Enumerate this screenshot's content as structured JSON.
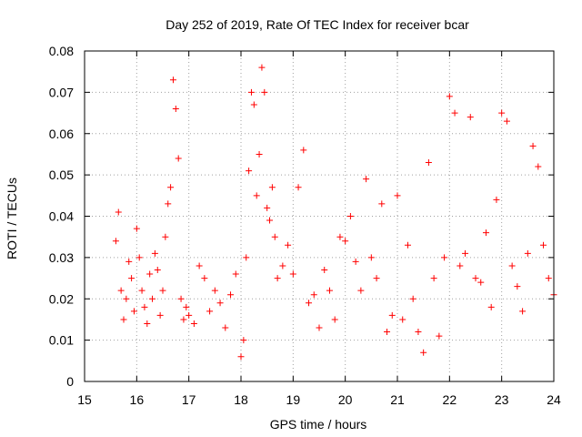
{
  "chart_data": {
    "type": "scatter",
    "title": "Day 252 of 2019, Rate Of TEC Index for receiver bcar",
    "xlabel": "GPS time / hours",
    "ylabel": "ROTI / TECUs",
    "xlim": [
      15,
      24
    ],
    "ylim": [
      0,
      0.08
    ],
    "x_ticks": [
      "15",
      "16",
      "17",
      "18",
      "19",
      "20",
      "21",
      "22",
      "23",
      "24"
    ],
    "y_ticks": [
      "0",
      "0.01",
      "0.02",
      "0.03",
      "0.04",
      "0.05",
      "0.06",
      "0.07",
      "0.08"
    ],
    "grid": true,
    "marker": "+",
    "color": "#ff0000",
    "series": [
      {
        "x": [
          15.6,
          15.65,
          15.7,
          15.75,
          15.8,
          15.85,
          15.9,
          15.95,
          16.0,
          16.05,
          16.1,
          16.15,
          16.2,
          16.25,
          16.3,
          16.35,
          16.4,
          16.45,
          16.5,
          16.55,
          16.6,
          16.65,
          16.7,
          16.75,
          16.8,
          16.85,
          16.9,
          16.95,
          17.0,
          17.1,
          17.2,
          17.3,
          17.4,
          17.5,
          17.6,
          17.7,
          17.8,
          17.9,
          18.0,
          18.05,
          18.1,
          18.15,
          18.2,
          18.25,
          18.3,
          18.35,
          18.4,
          18.45,
          18.5,
          18.55,
          18.6,
          18.65,
          18.7,
          18.8,
          18.9,
          19.0,
          19.1,
          19.2,
          19.3,
          19.4,
          19.5,
          19.6,
          19.7,
          19.8,
          19.9,
          20.0,
          20.1,
          20.2,
          20.3,
          20.4,
          20.5,
          20.6,
          20.7,
          20.8,
          20.9,
          21.0,
          21.1,
          21.2,
          21.3,
          21.4,
          21.5,
          21.6,
          21.7,
          21.8,
          21.9,
          22.0,
          22.1,
          22.2,
          22.3,
          22.4,
          22.5,
          22.6,
          22.7,
          22.8,
          22.9,
          23.0,
          23.1,
          23.2,
          23.3,
          23.4,
          23.5,
          23.6,
          23.7,
          23.8,
          23.9,
          24.0
        ],
        "y": [
          0.034,
          0.041,
          0.022,
          0.015,
          0.02,
          0.029,
          0.025,
          0.017,
          0.037,
          0.03,
          0.022,
          0.018,
          0.014,
          0.026,
          0.02,
          0.031,
          0.027,
          0.016,
          0.022,
          0.035,
          0.043,
          0.047,
          0.073,
          0.066,
          0.054,
          0.02,
          0.015,
          0.018,
          0.016,
          0.014,
          0.028,
          0.025,
          0.017,
          0.022,
          0.019,
          0.013,
          0.021,
          0.026,
          0.006,
          0.01,
          0.03,
          0.051,
          0.07,
          0.067,
          0.045,
          0.055,
          0.076,
          0.07,
          0.042,
          0.039,
          0.047,
          0.035,
          0.025,
          0.028,
          0.033,
          0.026,
          0.047,
          0.056,
          0.019,
          0.021,
          0.013,
          0.027,
          0.022,
          0.015,
          0.035,
          0.034,
          0.04,
          0.029,
          0.022,
          0.049,
          0.03,
          0.025,
          0.043,
          0.012,
          0.016,
          0.045,
          0.015,
          0.033,
          0.02,
          0.012,
          0.007,
          0.053,
          0.025,
          0.011,
          0.03,
          0.069,
          0.065,
          0.028,
          0.031,
          0.064,
          0.025,
          0.024,
          0.036,
          0.018,
          0.044,
          0.065,
          0.063,
          0.028,
          0.023,
          0.017,
          0.031,
          0.057,
          0.052,
          0.033,
          0.025,
          0.021
        ]
      }
    ]
  }
}
